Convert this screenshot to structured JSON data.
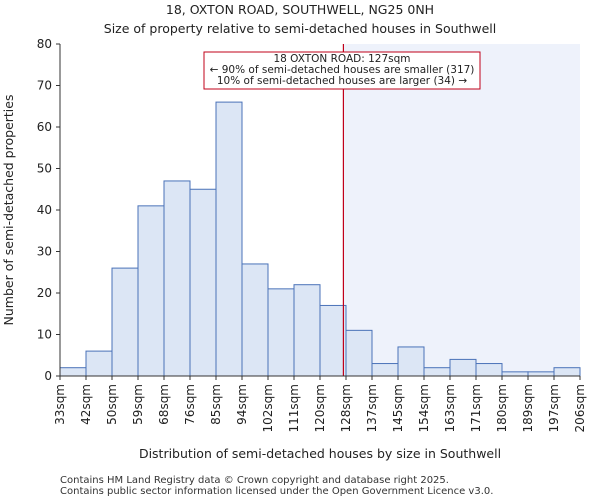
{
  "title_line1": "18, OXTON ROAD, SOUTHWELL, NG25 0NH",
  "title_line2": "Size of property relative to semi-detached houses in Southwell",
  "footer_line1": "Contains HM Land Registry data © Crown copyright and database right 2025.",
  "footer_line2": "Contains public sector information licensed under the Open Government Licence v3.0.",
  "annotation": {
    "line1": "18 OXTON ROAD: 127sqm",
    "line2": "← 90% of semi-detached houses are smaller (317)",
    "line3": "10% of semi-detached houses are larger (34) →"
  },
  "colors": {
    "bar_fill": "#dce6f5",
    "bar_stroke": "#4a72b8",
    "marker": "#c0001a",
    "shade": "#eef2fb",
    "axis": "#333333"
  },
  "chart_data": {
    "type": "bar",
    "title": "Size of property relative to semi-detached houses in Southwell",
    "xlabel": "Distribution of semi-detached houses by size in Southwell",
    "ylabel": "Number of semi-detached properties",
    "ylim": [
      0,
      80
    ],
    "yticks": [
      0,
      10,
      20,
      30,
      40,
      50,
      60,
      70,
      80
    ],
    "bin_labels": [
      "33sqm",
      "42sqm",
      "50sqm",
      "59sqm",
      "68sqm",
      "76sqm",
      "85sqm",
      "94sqm",
      "102sqm",
      "111sqm",
      "120sqm",
      "128sqm",
      "137sqm",
      "145sqm",
      "154sqm",
      "163sqm",
      "171sqm",
      "180sqm",
      "189sqm",
      "197sqm",
      "206sqm"
    ],
    "values": [
      2,
      6,
      26,
      41,
      47,
      45,
      66,
      27,
      21,
      22,
      17,
      11,
      3,
      7,
      2,
      4,
      3,
      1,
      1,
      2
    ],
    "marker_value_sqm": 127,
    "marker_bin_position": 10.9,
    "grid": false
  }
}
